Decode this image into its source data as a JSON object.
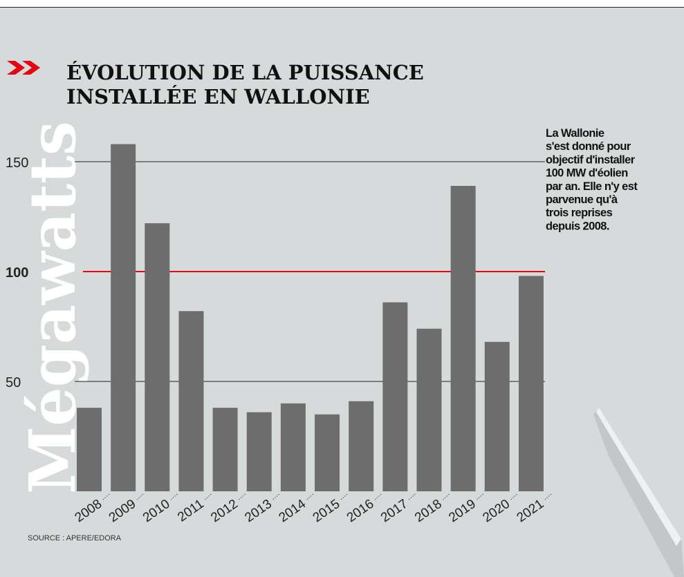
{
  "chart_data": {
    "type": "bar",
    "title_lines": [
      "ÉVOLUTION DE LA PUISSANCE",
      "INSTALLÉE EN WALLONIE"
    ],
    "y_label": "Mégawatts",
    "note_lines": [
      "La Wallonie",
      "s'est donné pour",
      "objectif d'installer",
      "100 MW d'éolien",
      "par an. Elle n'y est",
      "parvenue qu'à",
      "trois reprises",
      "depuis 2008."
    ],
    "source": "SOURCE : APERE/EDORA",
    "categories": [
      "2008",
      "2009",
      "2010",
      "2011",
      "2012",
      "2013",
      "2014",
      "2015",
      "2016",
      "2017",
      "2018",
      "2019",
      "2020",
      "2021"
    ],
    "values": [
      38,
      158,
      122,
      82,
      38,
      36,
      40,
      35,
      41,
      86,
      74,
      139,
      68,
      98
    ],
    "color": "#6d6d6d",
    "ylim": [
      0,
      160
    ],
    "yticks": [
      50,
      100,
      150
    ],
    "grid": true,
    "target_line": {
      "value": 100,
      "color": "#e30613"
    }
  }
}
